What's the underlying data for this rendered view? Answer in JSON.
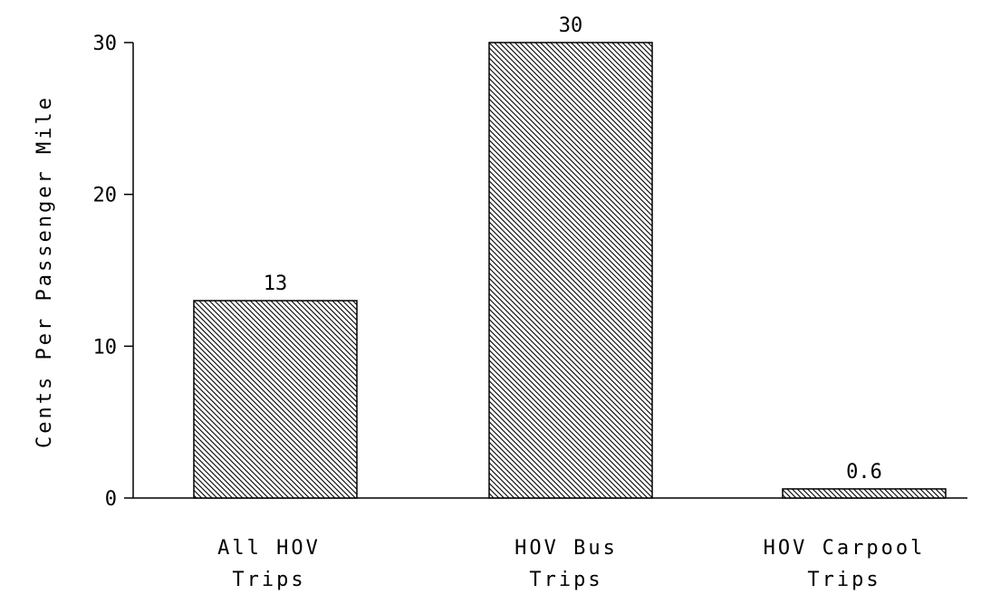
{
  "chart_data": {
    "type": "bar",
    "title": "",
    "xlabel": "",
    "ylabel": "Cents Per Passenger Mile",
    "ylim": [
      0,
      30
    ],
    "yticks": [
      0,
      10,
      20,
      30
    ],
    "grid": false,
    "categories": [
      [
        "All HOV",
        "Trips"
      ],
      [
        "HOV Bus",
        "Trips"
      ],
      [
        "HOV Carpool",
        "Trips"
      ]
    ],
    "values": [
      13,
      30,
      0.6
    ],
    "value_labels": [
      "13",
      "30",
      "0.6"
    ],
    "tick_labels": [
      "0",
      "10",
      "20",
      "30"
    ],
    "colors": {
      "bar_fill": "#ffffff",
      "hatch": "#000000",
      "axis": "#000000"
    },
    "bar_pattern": "diagonal-hatch"
  }
}
